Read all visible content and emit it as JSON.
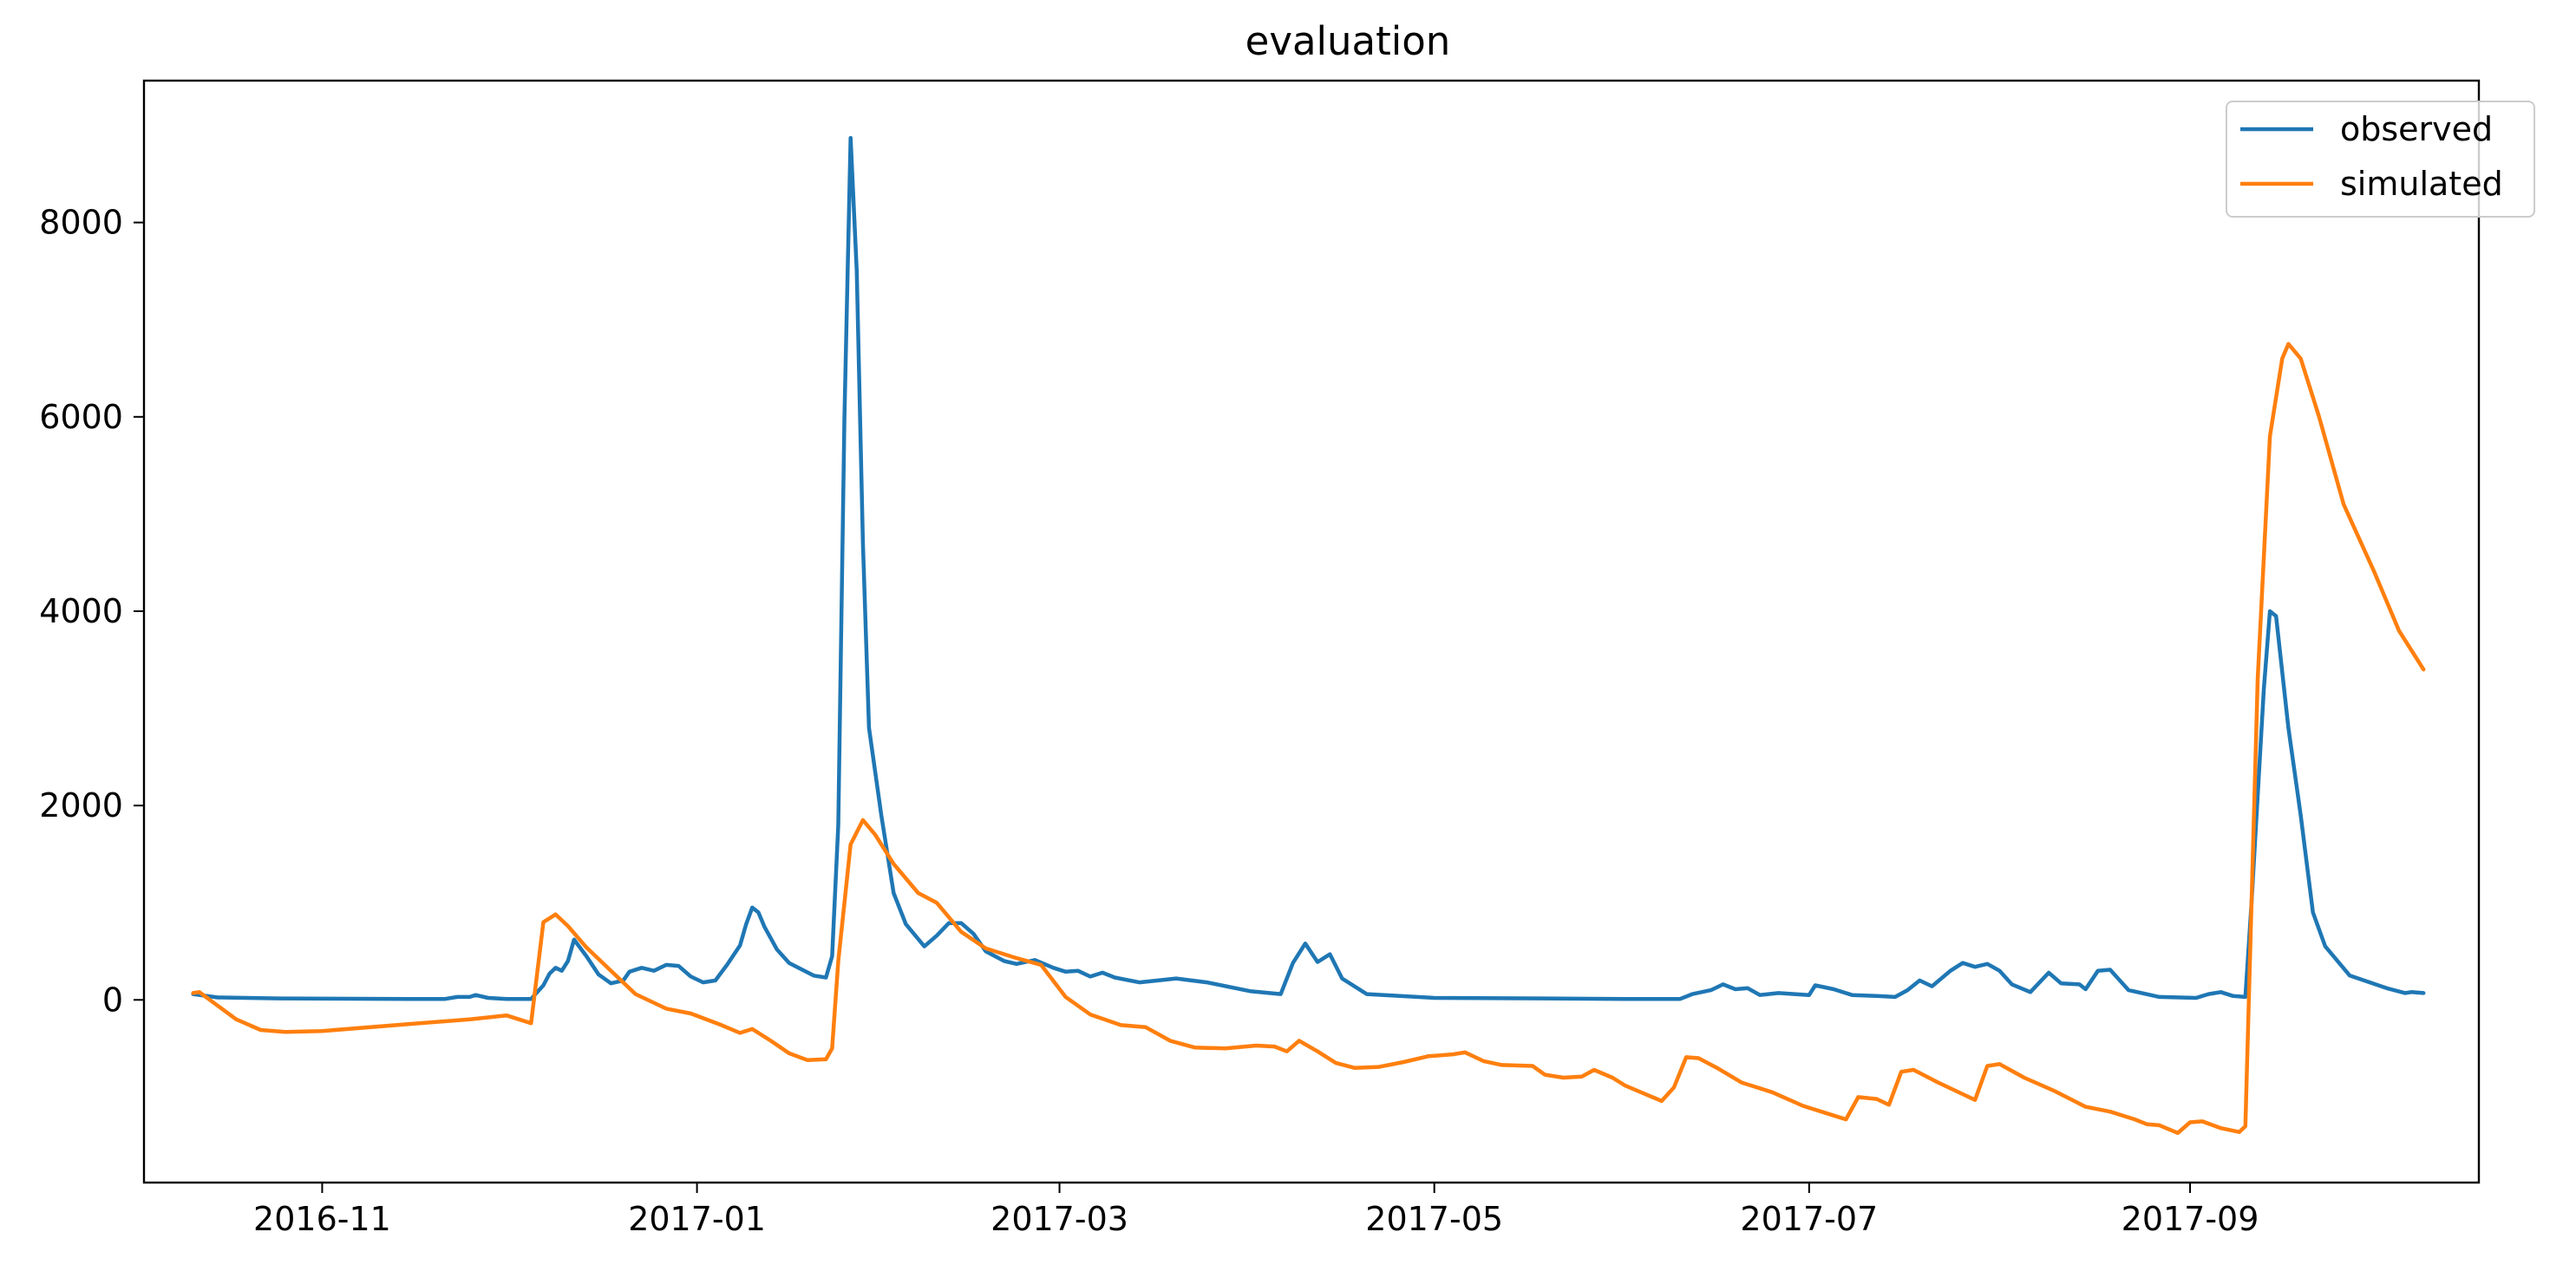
{
  "chart_data": {
    "type": "line",
    "title": "evaluation",
    "xlabel": "",
    "ylabel": "",
    "xlim": [
      "2016-10-03",
      "2017-10-18"
    ],
    "ylim": [
      -1880,
      9460
    ],
    "x_ticks": [
      {
        "date": "2016-11-01",
        "label": "2016-11"
      },
      {
        "date": "2017-01-01",
        "label": "2017-01"
      },
      {
        "date": "2017-03-01",
        "label": "2017-03"
      },
      {
        "date": "2017-05-01",
        "label": "2017-05"
      },
      {
        "date": "2017-07-01",
        "label": "2017-07"
      },
      {
        "date": "2017-09-01",
        "label": "2017-09"
      }
    ],
    "y_ticks": [
      {
        "value": 0,
        "label": "0"
      },
      {
        "value": 2000,
        "label": "2000"
      },
      {
        "value": 4000,
        "label": "4000"
      },
      {
        "value": 6000,
        "label": "6000"
      },
      {
        "value": 8000,
        "label": "8000"
      }
    ],
    "grid": false,
    "legend_position": "top-right",
    "series": [
      {
        "name": "observed",
        "color": "#1f77b4",
        "points": [
          [
            "2016-10-11",
            60
          ],
          [
            "2016-10-15",
            25
          ],
          [
            "2016-10-25",
            15
          ],
          [
            "2016-11-15",
            10
          ],
          [
            "2016-11-21",
            10
          ],
          [
            "2016-11-23",
            30
          ],
          [
            "2016-11-25",
            30
          ],
          [
            "2016-11-26",
            50
          ],
          [
            "2016-11-28",
            20
          ],
          [
            "2016-12-01",
            10
          ],
          [
            "2016-12-05",
            10
          ],
          [
            "2016-12-07",
            150
          ],
          [
            "2016-12-08",
            270
          ],
          [
            "2016-12-09",
            330
          ],
          [
            "2016-12-10",
            300
          ],
          [
            "2016-12-11",
            400
          ],
          [
            "2016-12-12",
            620
          ],
          [
            "2016-12-14",
            450
          ],
          [
            "2016-12-16",
            260
          ],
          [
            "2016-12-18",
            170
          ],
          [
            "2016-12-20",
            200
          ],
          [
            "2016-12-21",
            290
          ],
          [
            "2016-12-23",
            330
          ],
          [
            "2016-12-25",
            300
          ],
          [
            "2016-12-27",
            360
          ],
          [
            "2016-12-29",
            350
          ],
          [
            "2016-12-31",
            240
          ],
          [
            "2017-01-02",
            180
          ],
          [
            "2017-01-04",
            200
          ],
          [
            "2017-01-06",
            370
          ],
          [
            "2017-01-08",
            560
          ],
          [
            "2017-01-09",
            780
          ],
          [
            "2017-01-10",
            950
          ],
          [
            "2017-01-11",
            900
          ],
          [
            "2017-01-12",
            750
          ],
          [
            "2017-01-14",
            520
          ],
          [
            "2017-01-16",
            380
          ],
          [
            "2017-01-20",
            250
          ],
          [
            "2017-01-22",
            230
          ],
          [
            "2017-01-23",
            450
          ],
          [
            "2017-01-24",
            1800
          ],
          [
            "2017-01-25",
            6000
          ],
          [
            "2017-01-26",
            8870
          ],
          [
            "2017-01-27",
            7500
          ],
          [
            "2017-01-28",
            4700
          ],
          [
            "2017-01-29",
            2800
          ],
          [
            "2017-01-31",
            1900
          ],
          [
            "2017-02-02",
            1100
          ],
          [
            "2017-02-04",
            780
          ],
          [
            "2017-02-07",
            550
          ],
          [
            "2017-02-09",
            660
          ],
          [
            "2017-02-11",
            790
          ],
          [
            "2017-02-13",
            790
          ],
          [
            "2017-02-15",
            680
          ],
          [
            "2017-02-17",
            500
          ],
          [
            "2017-02-20",
            400
          ],
          [
            "2017-02-22",
            370
          ],
          [
            "2017-02-25",
            410
          ],
          [
            "2017-02-28",
            330
          ],
          [
            "2017-03-02",
            290
          ],
          [
            "2017-03-04",
            300
          ],
          [
            "2017-03-06",
            240
          ],
          [
            "2017-03-08",
            280
          ],
          [
            "2017-03-10",
            230
          ],
          [
            "2017-03-14",
            180
          ],
          [
            "2017-03-20",
            220
          ],
          [
            "2017-03-25",
            180
          ],
          [
            "2017-04-01",
            90
          ],
          [
            "2017-04-06",
            60
          ],
          [
            "2017-04-08",
            380
          ],
          [
            "2017-04-10",
            580
          ],
          [
            "2017-04-12",
            390
          ],
          [
            "2017-04-14",
            470
          ],
          [
            "2017-04-16",
            220
          ],
          [
            "2017-04-20",
            60
          ],
          [
            "2017-05-01",
            20
          ],
          [
            "2017-06-01",
            10
          ],
          [
            "2017-06-10",
            10
          ],
          [
            "2017-06-12",
            60
          ],
          [
            "2017-06-15",
            100
          ],
          [
            "2017-06-17",
            160
          ],
          [
            "2017-06-19",
            110
          ],
          [
            "2017-06-21",
            120
          ],
          [
            "2017-06-23",
            50
          ],
          [
            "2017-06-26",
            70
          ],
          [
            "2017-07-01",
            50
          ],
          [
            "2017-07-02",
            150
          ],
          [
            "2017-07-05",
            110
          ],
          [
            "2017-07-08",
            50
          ],
          [
            "2017-07-12",
            40
          ],
          [
            "2017-07-15",
            30
          ],
          [
            "2017-07-17",
            100
          ],
          [
            "2017-07-19",
            200
          ],
          [
            "2017-07-21",
            140
          ],
          [
            "2017-07-24",
            300
          ],
          [
            "2017-07-26",
            380
          ],
          [
            "2017-07-28",
            340
          ],
          [
            "2017-07-30",
            370
          ],
          [
            "2017-08-01",
            300
          ],
          [
            "2017-08-03",
            160
          ],
          [
            "2017-08-06",
            80
          ],
          [
            "2017-08-09",
            280
          ],
          [
            "2017-08-11",
            170
          ],
          [
            "2017-08-14",
            160
          ],
          [
            "2017-08-15",
            110
          ],
          [
            "2017-08-17",
            300
          ],
          [
            "2017-08-19",
            310
          ],
          [
            "2017-08-22",
            100
          ],
          [
            "2017-08-27",
            30
          ],
          [
            "2017-09-02",
            20
          ],
          [
            "2017-09-04",
            60
          ],
          [
            "2017-09-06",
            80
          ],
          [
            "2017-09-08",
            40
          ],
          [
            "2017-09-10",
            30
          ],
          [
            "2017-09-11",
            1000
          ],
          [
            "2017-09-13",
            3200
          ],
          [
            "2017-09-14",
            4000
          ],
          [
            "2017-09-15",
            3950
          ],
          [
            "2017-09-17",
            2800
          ],
          [
            "2017-09-19",
            1900
          ],
          [
            "2017-09-21",
            900
          ],
          [
            "2017-09-23",
            550
          ],
          [
            "2017-09-27",
            250
          ],
          [
            "2017-10-03",
            120
          ],
          [
            "2017-10-06",
            70
          ],
          [
            "2017-10-07",
            80
          ],
          [
            "2017-10-09",
            70
          ]
        ]
      },
      {
        "name": "simulated",
        "color": "#ff7f0e",
        "points": [
          [
            "2016-10-11",
            70
          ],
          [
            "2016-10-12",
            80
          ],
          [
            "2016-10-15",
            -60
          ],
          [
            "2016-10-18",
            -200
          ],
          [
            "2016-10-22",
            -310
          ],
          [
            "2016-10-26",
            -330
          ],
          [
            "2016-11-01",
            -320
          ],
          [
            "2016-11-15",
            -250
          ],
          [
            "2016-11-25",
            -200
          ],
          [
            "2016-12-01",
            -160
          ],
          [
            "2016-12-03",
            -200
          ],
          [
            "2016-12-05",
            -240
          ],
          [
            "2016-12-07",
            800
          ],
          [
            "2016-12-09",
            880
          ],
          [
            "2016-12-11",
            760
          ],
          [
            "2016-12-14",
            540
          ],
          [
            "2016-12-18",
            300
          ],
          [
            "2016-12-22",
            60
          ],
          [
            "2016-12-27",
            -90
          ],
          [
            "2016-12-31",
            -140
          ],
          [
            "2017-01-05",
            -260
          ],
          [
            "2017-01-08",
            -340
          ],
          [
            "2017-01-10",
            -300
          ],
          [
            "2017-01-13",
            -420
          ],
          [
            "2017-01-16",
            -550
          ],
          [
            "2017-01-19",
            -620
          ],
          [
            "2017-01-22",
            -610
          ],
          [
            "2017-01-23",
            -500
          ],
          [
            "2017-01-24",
            400
          ],
          [
            "2017-01-26",
            1600
          ],
          [
            "2017-01-28",
            1850
          ],
          [
            "2017-01-30",
            1700
          ],
          [
            "2017-02-02",
            1400
          ],
          [
            "2017-02-06",
            1100
          ],
          [
            "2017-02-09",
            1000
          ],
          [
            "2017-02-13",
            700
          ],
          [
            "2017-02-17",
            530
          ],
          [
            "2017-02-22",
            430
          ],
          [
            "2017-02-26",
            360
          ],
          [
            "2017-03-02",
            30
          ],
          [
            "2017-03-06",
            -150
          ],
          [
            "2017-03-11",
            -260
          ],
          [
            "2017-03-15",
            -280
          ],
          [
            "2017-03-19",
            -420
          ],
          [
            "2017-03-23",
            -490
          ],
          [
            "2017-03-28",
            -500
          ],
          [
            "2017-04-02",
            -470
          ],
          [
            "2017-04-05",
            -480
          ],
          [
            "2017-04-07",
            -530
          ],
          [
            "2017-04-09",
            -420
          ],
          [
            "2017-04-12",
            -530
          ],
          [
            "2017-04-15",
            -650
          ],
          [
            "2017-04-18",
            -700
          ],
          [
            "2017-04-22",
            -690
          ],
          [
            "2017-04-26",
            -640
          ],
          [
            "2017-04-30",
            -580
          ],
          [
            "2017-05-04",
            -560
          ],
          [
            "2017-05-06",
            -540
          ],
          [
            "2017-05-09",
            -630
          ],
          [
            "2017-05-12",
            -670
          ],
          [
            "2017-05-17",
            -680
          ],
          [
            "2017-05-19",
            -770
          ],
          [
            "2017-05-22",
            -800
          ],
          [
            "2017-05-25",
            -790
          ],
          [
            "2017-05-27",
            -720
          ],
          [
            "2017-05-30",
            -800
          ],
          [
            "2017-06-01",
            -880
          ],
          [
            "2017-06-04",
            -960
          ],
          [
            "2017-06-07",
            -1040
          ],
          [
            "2017-06-09",
            -900
          ],
          [
            "2017-06-11",
            -590
          ],
          [
            "2017-06-13",
            -600
          ],
          [
            "2017-06-16",
            -700
          ],
          [
            "2017-06-20",
            -850
          ],
          [
            "2017-06-25",
            -950
          ],
          [
            "2017-06-30",
            -1090
          ],
          [
            "2017-07-05",
            -1190
          ],
          [
            "2017-07-07",
            -1230
          ],
          [
            "2017-07-09",
            -1000
          ],
          [
            "2017-07-12",
            -1020
          ],
          [
            "2017-07-14",
            -1080
          ],
          [
            "2017-07-16",
            -740
          ],
          [
            "2017-07-18",
            -720
          ],
          [
            "2017-07-22",
            -850
          ],
          [
            "2017-07-26",
            -970
          ],
          [
            "2017-07-28",
            -1030
          ],
          [
            "2017-07-30",
            -680
          ],
          [
            "2017-08-01",
            -660
          ],
          [
            "2017-08-05",
            -800
          ],
          [
            "2017-08-10",
            -940
          ],
          [
            "2017-08-15",
            -1100
          ],
          [
            "2017-08-19",
            -1150
          ],
          [
            "2017-08-23",
            -1230
          ],
          [
            "2017-08-25",
            -1280
          ],
          [
            "2017-08-27",
            -1290
          ],
          [
            "2017-08-30",
            -1370
          ],
          [
            "2017-09-01",
            -1260
          ],
          [
            "2017-09-03",
            -1250
          ],
          [
            "2017-09-06",
            -1320
          ],
          [
            "2017-09-09",
            -1360
          ],
          [
            "2017-09-10",
            -1300
          ],
          [
            "2017-09-12",
            3300
          ],
          [
            "2017-09-14",
            5800
          ],
          [
            "2017-09-16",
            6600
          ],
          [
            "2017-09-17",
            6750
          ],
          [
            "2017-09-19",
            6600
          ],
          [
            "2017-09-22",
            6000
          ],
          [
            "2017-09-26",
            5100
          ],
          [
            "2017-10-01",
            4400
          ],
          [
            "2017-10-05",
            3800
          ],
          [
            "2017-10-08",
            3500
          ],
          [
            "2017-10-09",
            3400
          ]
        ]
      }
    ]
  }
}
